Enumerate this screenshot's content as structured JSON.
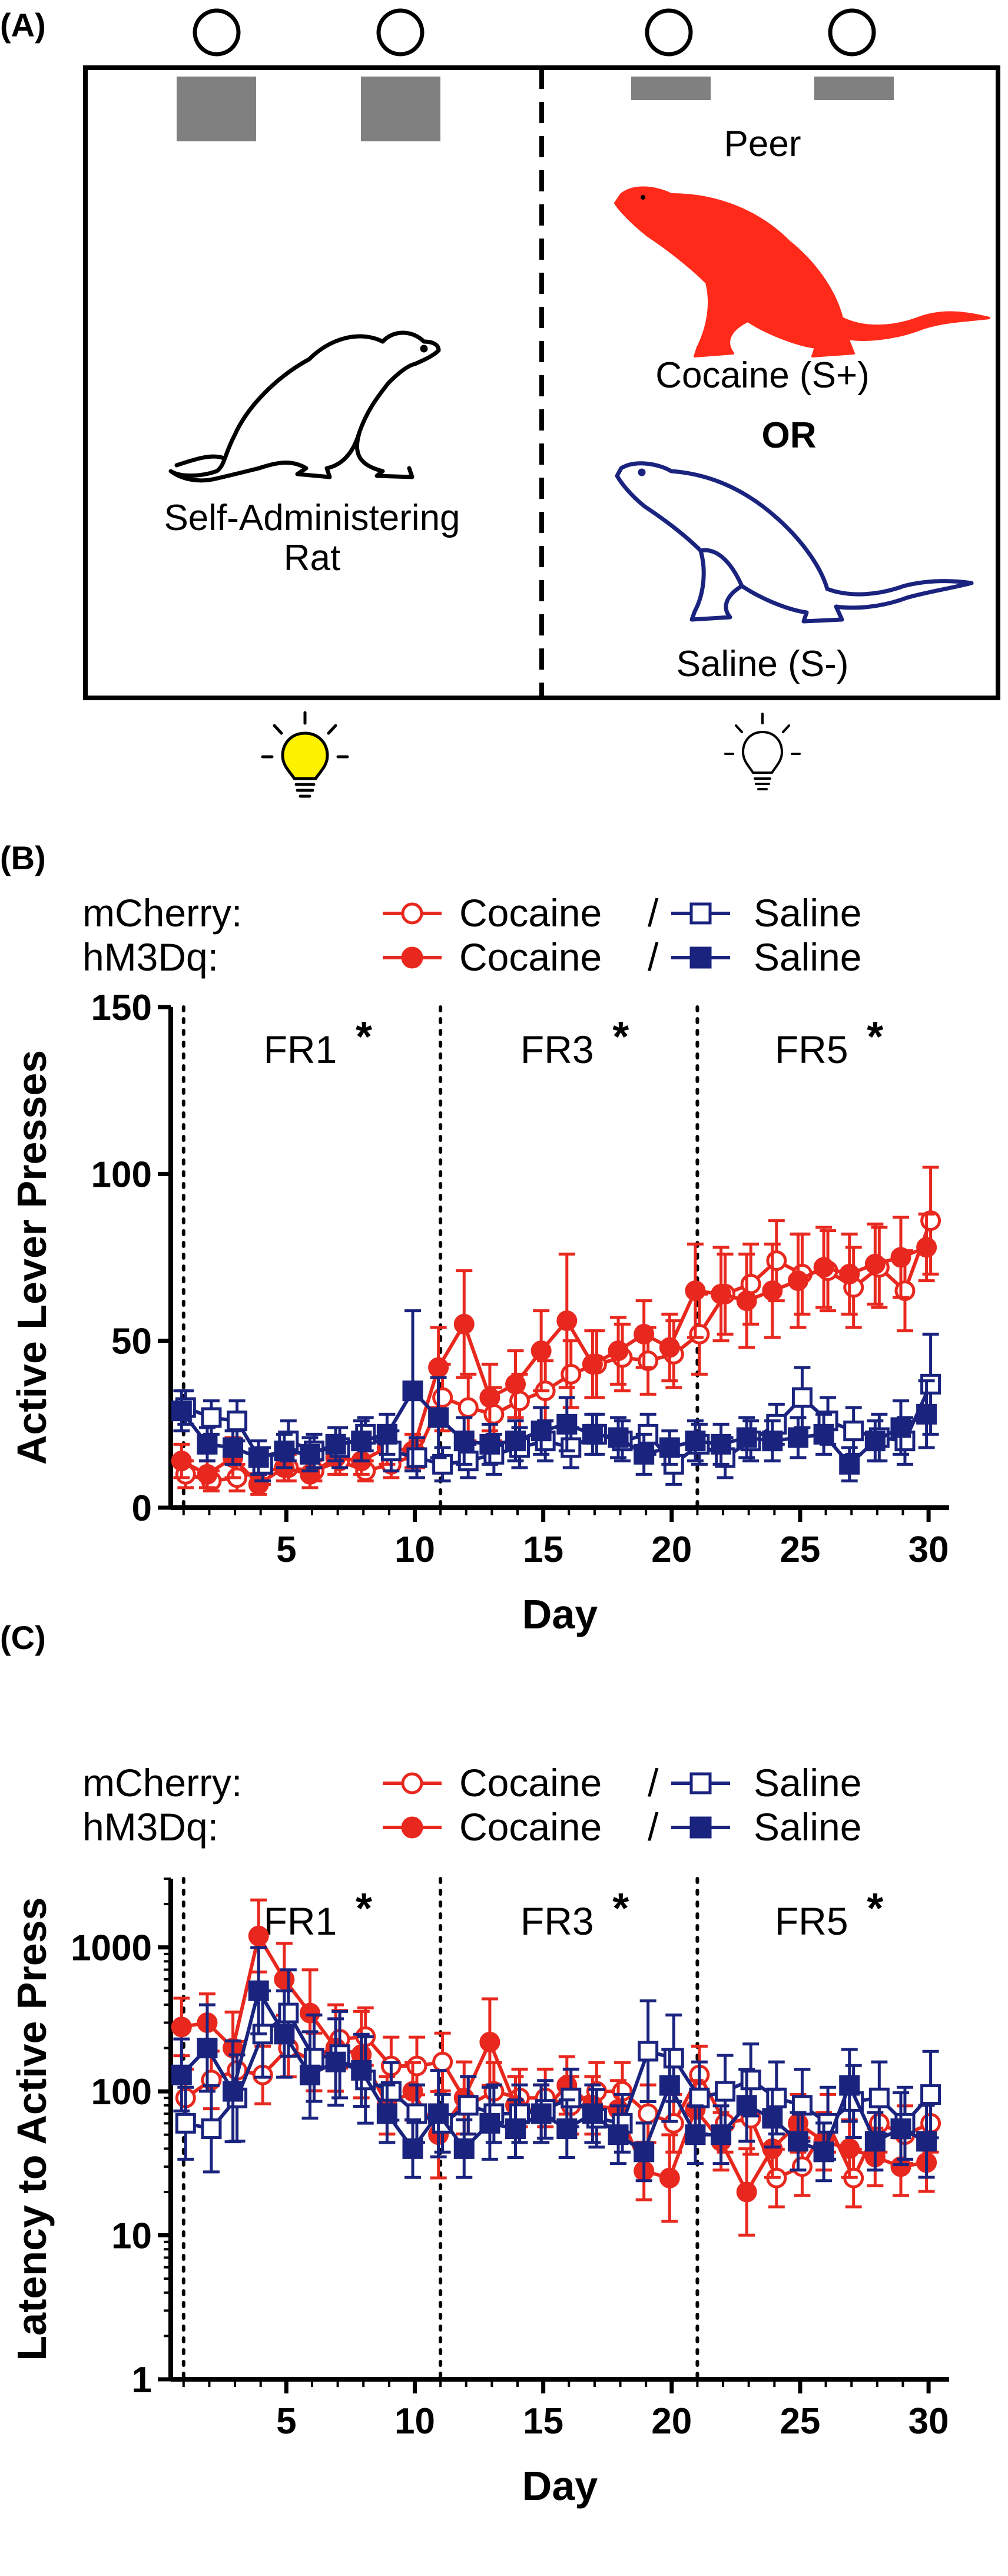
{
  "panel_a": {
    "label": "(A)",
    "peer_label": "Peer",
    "self_admin_line1": "Self-Administering",
    "self_admin_line2": "Rat",
    "cocaine_label": "Cocaine (S+)",
    "or_label": "OR",
    "saline_label": "Saline (S-)",
    "colors": {
      "cocaine": "#ff2a1a",
      "saline": "#1a237e",
      "bulb_on": "#fff200",
      "block": "#808080"
    }
  },
  "panel_b": {
    "label": "(B)",
    "legend": {
      "row1_name": "mCherry:",
      "row2_name": "hM3Dq:",
      "cocaine": "Cocaine",
      "slash": "/",
      "saline": "Saline"
    },
    "phases": [
      "FR1",
      "FR3",
      "FR5"
    ],
    "star": "*"
  },
  "panel_c": {
    "label": "(C)",
    "legend": {
      "row1_name": "mCherry:",
      "row2_name": "hM3Dq:",
      "cocaine": "Cocaine",
      "slash": "/",
      "saline": "Saline"
    },
    "phases": [
      "FR1",
      "FR3",
      "FR5"
    ],
    "star": "*"
  },
  "chart_data": [
    {
      "type": "line",
      "ylabel": "Active Lever Presses",
      "xlabel": "Day",
      "xlim": [
        0.5,
        30.8
      ],
      "ylim": [
        0,
        150
      ],
      "xticks": [
        "5",
        "10",
        "15",
        "20",
        "25",
        "30"
      ],
      "yticks": [
        "0",
        "50",
        "100",
        "150"
      ],
      "phase_boundaries": [
        1,
        11,
        21
      ],
      "x": [
        1,
        2,
        3,
        4,
        5,
        6,
        7,
        8,
        9,
        10,
        11,
        12,
        13,
        14,
        15,
        16,
        17,
        18,
        19,
        20,
        21,
        22,
        23,
        24,
        25,
        26,
        27,
        28,
        29,
        30
      ],
      "series": [
        {
          "name": "mCherry: Cocaine",
          "color": "#e8281e",
          "marker": "circle-open",
          "values": [
            10,
            8,
            9,
            11,
            12,
            11,
            14,
            11,
            13,
            16,
            33,
            30,
            28,
            32,
            35,
            40,
            43,
            45,
            44,
            46,
            52,
            64,
            67,
            74,
            70,
            71,
            66,
            72,
            65,
            86
          ],
          "errors": [
            4,
            3,
            4,
            4,
            4,
            3,
            4,
            3,
            4,
            4,
            10,
            10,
            8,
            8,
            9,
            10,
            10,
            10,
            10,
            10,
            12,
            12,
            12,
            12,
            12,
            12,
            12,
            12,
            12,
            16
          ]
        },
        {
          "name": "hM3Dq: Cocaine",
          "color": "#e8281e",
          "marker": "circle-filled",
          "values": [
            14,
            10,
            15,
            7,
            12,
            10,
            15,
            14,
            18,
            17,
            42,
            55,
            33,
            37,
            47,
            56,
            43,
            47,
            52,
            48,
            65,
            64,
            62,
            65,
            68,
            72,
            70,
            73,
            75,
            78
          ],
          "errors": [
            5,
            4,
            6,
            3,
            4,
            4,
            5,
            4,
            5,
            5,
            12,
            16,
            10,
            10,
            12,
            20,
            10,
            10,
            10,
            10,
            14,
            14,
            14,
            14,
            14,
            12,
            12,
            12,
            12,
            10
          ]
        },
        {
          "name": "mCherry: Saline",
          "color": "#1a237e",
          "marker": "square-open",
          "values": [
            30,
            27,
            26,
            13,
            20,
            17,
            18,
            22,
            17,
            15,
            13,
            14,
            16,
            18,
            20,
            18,
            22,
            20,
            22,
            13,
            19,
            15,
            20,
            25,
            33,
            26,
            23,
            21,
            20,
            37
          ],
          "errors": [
            5,
            5,
            6,
            5,
            6,
            5,
            6,
            5,
            6,
            6,
            5,
            5,
            6,
            6,
            6,
            6,
            6,
            6,
            6,
            6,
            6,
            6,
            6,
            6,
            9,
            7,
            7,
            7,
            7,
            15
          ]
        },
        {
          "name": "hM3Dq: Saline",
          "color": "#1a237e",
          "marker": "square-filled",
          "values": [
            29,
            19,
            18,
            15,
            17,
            16,
            19,
            20,
            22,
            35,
            27,
            20,
            19,
            20,
            23,
            25,
            22,
            21,
            16,
            18,
            20,
            19,
            21,
            20,
            21,
            22,
            13,
            20,
            24,
            28
          ],
          "errors": [
            6,
            5,
            5,
            5,
            5,
            5,
            5,
            6,
            6,
            24,
            12,
            7,
            6,
            6,
            7,
            8,
            6,
            6,
            6,
            5,
            6,
            6,
            6,
            6,
            6,
            6,
            5,
            6,
            8,
            10
          ]
        }
      ]
    },
    {
      "type": "line",
      "ylabel": "Latency to Active Press",
      "xlabel": "Day",
      "yscale": "log",
      "xlim": [
        0.5,
        30.8
      ],
      "ylim": [
        1,
        3000
      ],
      "xticks": [
        "5",
        "10",
        "15",
        "20",
        "25",
        "30"
      ],
      "yticks": [
        "1",
        "10",
        "100",
        "1000"
      ],
      "phase_boundaries": [
        1,
        11,
        21
      ],
      "x": [
        1,
        2,
        3,
        4,
        5,
        6,
        7,
        8,
        9,
        10,
        11,
        12,
        13,
        14,
        15,
        16,
        17,
        18,
        19,
        20,
        21,
        22,
        23,
        24,
        25,
        26,
        27,
        28,
        29,
        30
      ],
      "series": [
        {
          "name": "mCherry: Cocaine",
          "color": "#e8281e",
          "marker": "circle-open",
          "values": [
            90,
            120,
            140,
            130,
            200,
            160,
            230,
            240,
            150,
            150,
            160,
            80,
            100,
            90,
            90,
            80,
            100,
            100,
            70,
            60,
            130,
            60,
            65,
            25,
            30,
            60,
            25,
            60,
            50,
            60
          ],
          "errors_log": [
            0.2,
            0.2,
            0.2,
            0.2,
            0.2,
            0.2,
            0.2,
            0.2,
            0.2,
            0.2,
            0.2,
            0.2,
            0.2,
            0.2,
            0.2,
            0.2,
            0.2,
            0.2,
            0.2,
            0.2,
            0.2,
            0.2,
            0.25,
            0.2,
            0.2,
            0.2,
            0.2,
            0.2,
            0.2,
            0.2
          ]
        },
        {
          "name": "hM3Dq: Cocaine",
          "color": "#e8281e",
          "marker": "circle-filled",
          "values": [
            280,
            300,
            200,
            1200,
            600,
            350,
            200,
            180,
            80,
            100,
            50,
            90,
            220,
            80,
            70,
            110,
            80,
            75,
            28,
            25,
            75,
            45,
            20,
            40,
            60,
            45,
            40,
            35,
            30,
            32
          ],
          "errors_log": [
            0.2,
            0.2,
            0.25,
            0.25,
            0.25,
            0.3,
            0.3,
            0.3,
            0.2,
            0.2,
            0.3,
            0.25,
            0.3,
            0.2,
            0.2,
            0.2,
            0.2,
            0.2,
            0.2,
            0.3,
            0.2,
            0.2,
            0.3,
            0.2,
            0.2,
            0.2,
            0.2,
            0.2,
            0.2,
            0.2
          ]
        },
        {
          "name": "mCherry: Saline",
          "color": "#1a237e",
          "marker": "square-open",
          "values": [
            60,
            55,
            90,
            250,
            350,
            170,
            180,
            120,
            100,
            70,
            60,
            80,
            70,
            70,
            75,
            90,
            65,
            60,
            190,
            170,
            90,
            100,
            120,
            90,
            80,
            60,
            85,
            90,
            60,
            95
          ],
          "errors_log": [
            0.25,
            0.3,
            0.3,
            0.3,
            0.3,
            0.3,
            0.3,
            0.3,
            0.2,
            0.2,
            0.2,
            0.2,
            0.2,
            0.2,
            0.2,
            0.2,
            0.2,
            0.2,
            0.35,
            0.3,
            0.25,
            0.25,
            0.25,
            0.25,
            0.25,
            0.25,
            0.25,
            0.25,
            0.25,
            0.3
          ]
        },
        {
          "name": "hM3Dq: Saline",
          "color": "#1a237e",
          "marker": "square-filled",
          "values": [
            130,
            200,
            100,
            500,
            250,
            130,
            160,
            140,
            70,
            40,
            70,
            40,
            60,
            55,
            70,
            55,
            70,
            50,
            38,
            110,
            50,
            50,
            80,
            65,
            45,
            38,
            110,
            45,
            55,
            45
          ],
          "errors_log": [
            0.25,
            0.3,
            0.35,
            0.3,
            0.3,
            0.3,
            0.3,
            0.25,
            0.2,
            0.2,
            0.3,
            0.2,
            0.25,
            0.2,
            0.2,
            0.2,
            0.2,
            0.2,
            0.2,
            0.25,
            0.2,
            0.2,
            0.25,
            0.2,
            0.2,
            0.2,
            0.25,
            0.2,
            0.25,
            0.25
          ]
        }
      ]
    }
  ]
}
